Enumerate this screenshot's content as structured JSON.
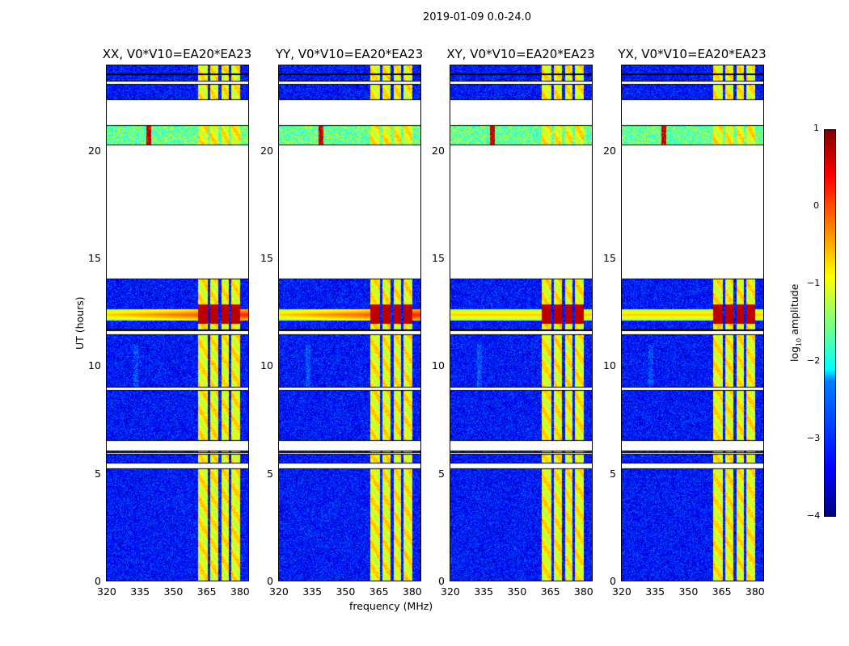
{
  "suptitle": "2019-01-09 0.0-24.0",
  "chart_data": {
    "type": "heatmap",
    "title": "2019-01-09 0.0-24.0",
    "xlabel": "frequency (MHz)",
    "ylabel": "UT (hours)",
    "xlim": [
      320,
      384.4
    ],
    "ylim": [
      0,
      24
    ],
    "xticks": [
      "320",
      "335",
      "350",
      "365",
      "380"
    ],
    "yticks": [
      "0",
      "5",
      "10",
      "15",
      "20"
    ],
    "panels": [
      {
        "title": "XX, V0*V10=EA20*EA23",
        "pol": "XX"
      },
      {
        "title": "YY, V0*V10=EA20*EA23",
        "pol": "YY"
      },
      {
        "title": "XY, V0*V10=EA20*EA23",
        "pol": "XY"
      },
      {
        "title": "YX, V0*V10=EA20*EA23",
        "pol": "YX"
      }
    ],
    "observed_time_segments_hours": [
      [
        0,
        5.2
      ],
      [
        5.5,
        5.9
      ],
      [
        6.0,
        6.05
      ],
      [
        6.55,
        8.85
      ],
      [
        9.05,
        11.45
      ],
      [
        11.7,
        14.05
      ],
      [
        20.35,
        21.2
      ],
      [
        22.45,
        23.1
      ],
      [
        23.3,
        23.55
      ],
      [
        23.65,
        24
      ]
    ],
    "rfi_band_MHz": [
      361.5,
      380.5
    ],
    "background_log10_amplitude": -3.3,
    "rfi_band_log10_amplitude": -0.9,
    "strong_interval_hours": [
      12.0,
      12.9
    ],
    "strong_interval_log10_amplitude": 0.7,
    "colorbar": {
      "label": "log10 amplitude",
      "label_main": "log",
      "label_sub": "10",
      "label_tail": " amplitude",
      "range": [
        -4,
        1
      ],
      "ticks": [
        "1",
        "0",
        "−1",
        "−2",
        "−3",
        "−4"
      ],
      "colormap": "jet"
    }
  }
}
